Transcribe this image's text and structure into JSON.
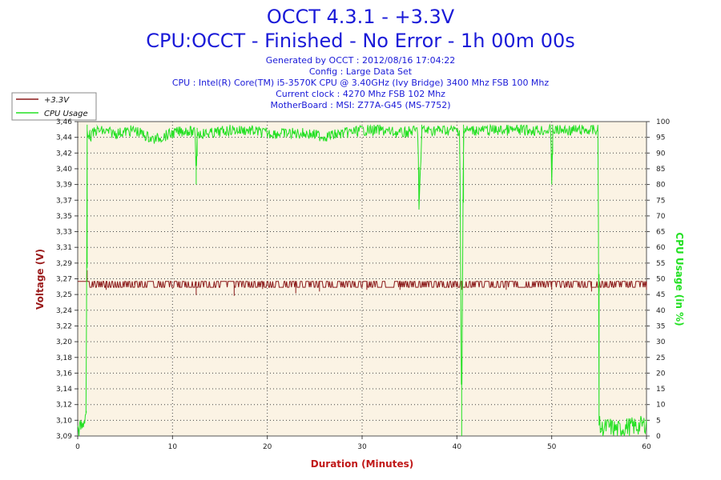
{
  "header": {
    "title": "OCCT 4.3.1 - +3.3V",
    "subtitle": "CPU:OCCT - Finished - No Error - 1h 00m 00s",
    "info_lines": [
      "Generated by OCCT : 2012/08/16 17:04:22",
      "Config : Large Data Set",
      "CPU : Intel(R) Core(TM) i5-3570K CPU @ 3.40GHz (Ivy Bridge) 3400 Mhz FSB 100 Mhz",
      "Current clock : 4270 Mhz FSB 102 Mhz",
      "MotherBoard : MSI: Z77A-G45 (MS-7752)"
    ]
  },
  "colors": {
    "voltage": "#8b1a1a",
    "cpu": "#22e022",
    "plot_bg": "#fbf3e4",
    "title": "#1a1ad8",
    "axis_title_left": "#9b1c1c",
    "axis_title_right": "#22e022",
    "axis_title_bottom": "#c01818"
  },
  "chart_data": {
    "type": "line",
    "xlabel": "Duration (Minutes)",
    "ylabel": "Voltage (V)",
    "y2label": "CPU Usage (in %)",
    "xlim": [
      0,
      60
    ],
    "ylim": [
      3.09,
      3.46
    ],
    "y2lim": [
      0,
      100
    ],
    "x_ticks": [
      "0",
      "10",
      "20",
      "30",
      "40",
      "50",
      "60"
    ],
    "y_ticks": [
      "3,09",
      "3,10",
      "3,12",
      "3,14",
      "3,16",
      "3,18",
      "3,20",
      "3,22",
      "3,24",
      "3,25",
      "3,27",
      "3,29",
      "3,31",
      "3,33",
      "3,35",
      "3,37",
      "3,39",
      "3,40",
      "3,42",
      "3,44",
      "3,46"
    ],
    "y2_ticks": [
      "0",
      "5",
      "10",
      "15",
      "20",
      "25",
      "30",
      "35",
      "40",
      "45",
      "50",
      "55",
      "60",
      "65",
      "70",
      "75",
      "80",
      "85",
      "90",
      "95",
      "100"
    ],
    "grid": true,
    "legend_position": "top-left",
    "series": [
      {
        "name": "+3.3V",
        "axis": "left",
        "baseline": 3.272,
        "lower_level": 3.265,
        "x": [
          0,
          0.8,
          1.0,
          1.2,
          3.0,
          6.0,
          10.8,
          12.5,
          16.5,
          19.5,
          23.0,
          25.5,
          30.5,
          34.0,
          36.2,
          40.5,
          45.2,
          50.0,
          51.8,
          54.2,
          55.0,
          60.0
        ],
        "values": [
          3.272,
          3.272,
          3.285,
          3.272,
          3.262,
          3.268,
          3.265,
          3.256,
          3.255,
          3.263,
          3.258,
          3.26,
          3.262,
          3.262,
          3.272,
          3.262,
          3.262,
          3.262,
          3.268,
          3.26,
          3.26,
          3.262
        ]
      },
      {
        "name": "CPU Usage",
        "axis": "right",
        "x": [
          0,
          0.5,
          0.9,
          1.0,
          1.3,
          2.0,
          4.0,
          6.0,
          8.0,
          10.0,
          11.5,
          12.4,
          12.5,
          12.6,
          14.0,
          16.0,
          18.0,
          20.0,
          22.0,
          24.0,
          26.0,
          28.0,
          30.0,
          32.0,
          34.0,
          35.9,
          36.0,
          36.3,
          38.0,
          40.3,
          40.5,
          40.7,
          42.0,
          44.0,
          46.0,
          48.0,
          49.9,
          50.0,
          50.1,
          52.0,
          54.8,
          54.9,
          55.0,
          55.2,
          56.0,
          57.0,
          58.0,
          59.0,
          60.0
        ],
        "values": [
          2,
          3,
          8,
          99,
          97,
          99,
          98,
          99,
          96,
          98,
          99,
          98,
          80,
          98,
          98,
          99,
          99,
          98,
          98,
          98,
          97,
          98,
          99,
          99,
          98,
          99,
          72,
          99,
          99,
          99,
          0,
          99,
          99,
          99,
          99,
          99,
          99,
          80,
          99,
          99,
          99,
          99,
          4,
          2,
          3,
          2,
          3,
          3,
          4
        ]
      }
    ]
  }
}
